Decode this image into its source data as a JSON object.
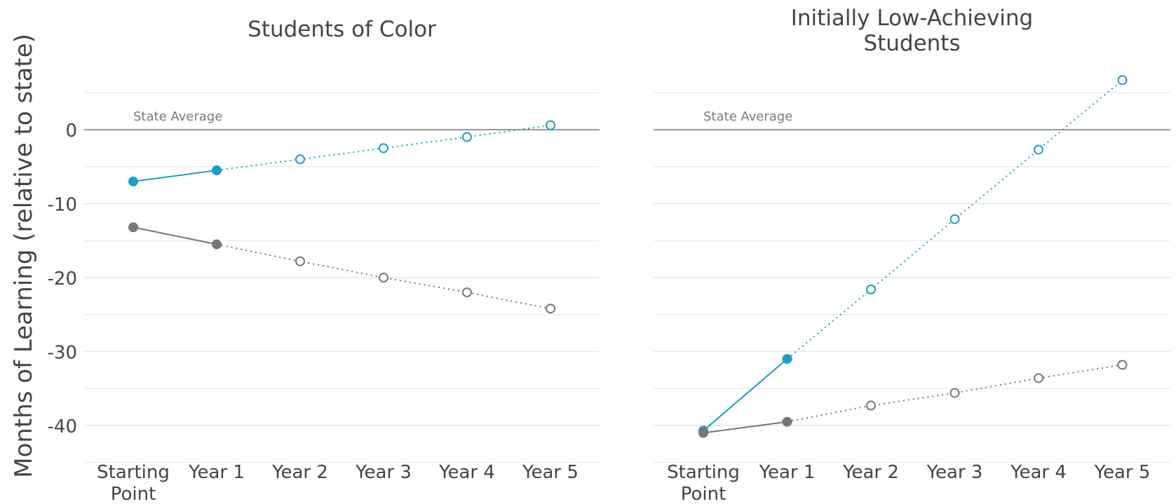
{
  "chart_data": {
    "type": "line",
    "ylabel": "Months of Learning (relative to state)",
    "ylim": [
      -45,
      7
    ],
    "yticks": [
      0,
      -10,
      -20,
      -30,
      -40
    ],
    "grid": true,
    "categories": [
      "Starting\nPoint",
      "Year 1",
      "Year 2",
      "Year 3",
      "Year 4",
      "Year 5"
    ],
    "reference_line": {
      "y": 0,
      "label": "State Average"
    },
    "colors": {
      "teal": "#1a9fc0",
      "gray": "#777777",
      "grid": "#e6e6e6",
      "ref": "#999999"
    },
    "panels": [
      {
        "title": "Students of Color",
        "series": [
          {
            "color": "teal",
            "values": [
              -7.0,
              -5.5,
              -4.0,
              -2.5,
              -1.0,
              0.6
            ],
            "observed_through": 1
          },
          {
            "color": "gray",
            "values": [
              -13.2,
              -15.5,
              -17.8,
              -20.0,
              -22.0,
              -24.2
            ],
            "observed_through": 1
          }
        ]
      },
      {
        "title": "Initially Low-Achieving\nStudents",
        "series": [
          {
            "color": "teal",
            "values": [
              -40.7,
              -31.0,
              -21.6,
              -12.1,
              -2.7,
              6.7
            ],
            "observed_through": 1
          },
          {
            "color": "gray",
            "values": [
              -41.0,
              -39.5,
              -37.3,
              -35.6,
              -33.6,
              -31.8
            ],
            "observed_through": 1
          }
        ]
      }
    ]
  }
}
